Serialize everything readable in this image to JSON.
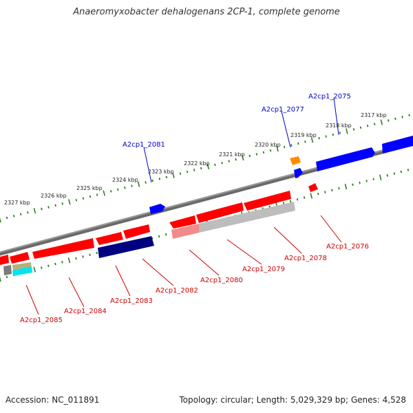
{
  "title": "Anaeromyxobacter dehalogenans 2CP-1, complete genome",
  "footer": {
    "accession": "Accession: NC_011891",
    "summary": "Topology: circular; Length: 5,029,329 bp; Genes: 4,528"
  },
  "colors": {
    "backbone": "#808080",
    "tick": "#2e7d1e",
    "red": "#ff0000",
    "blue": "#0000ff",
    "navy": "#000080",
    "orange": "#ff8c00",
    "gray": "#bfbfbf",
    "olive": "#b5b07a",
    "cyan": "#00e5ee",
    "label_blue": "#0000cc",
    "label_red": "#cc0000"
  },
  "ruler": {
    "unit": "kbp",
    "labels": [
      "2317 kbp",
      "2318 kbp",
      "2319 kbp",
      "2320 kbp",
      "2321 kbp",
      "2322 kbp",
      "2323 kbp",
      "2324 kbp",
      "2325 kbp",
      "2326 kbp",
      "2327 kbp"
    ]
  },
  "gene_labels": {
    "top": [
      "A2cp1_2075",
      "A2cp1_2077",
      "A2cp1_2081"
    ],
    "bottom": [
      "A2cp1_2076",
      "A2cp1_2078",
      "A2cp1_2079",
      "A2cp1_2080",
      "A2cp1_2082",
      "A2cp1_2083",
      "A2cp1_2084",
      "A2cp1_2085"
    ]
  }
}
